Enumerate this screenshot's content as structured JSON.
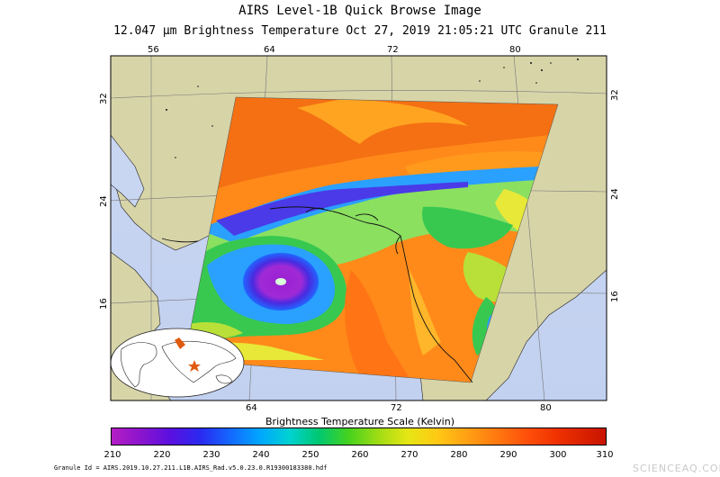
{
  "header": {
    "title": "AIRS Level-1B Quick Browse Image",
    "subtitle": "12.047 μm Brightness Temperature   Oct 27, 2019 21:05:21 UTC   Granule 211"
  },
  "map": {
    "top_ticks": [
      "56",
      "64",
      "72",
      "80"
    ],
    "bottom_ticks": [
      "64",
      "72",
      "80"
    ],
    "left_ticks": [
      "32",
      "24",
      "16"
    ],
    "right_ticks": [
      "32",
      "24",
      "16"
    ],
    "colors": {
      "ocean": "#c9d6f2",
      "land": "#d7d4a8",
      "grid": "#555555"
    }
  },
  "scale": {
    "title": "Brightness Temperature Scale (Kelvin)",
    "labels": [
      "210",
      "220",
      "230",
      "240",
      "250",
      "260",
      "270",
      "280",
      "290",
      "300",
      "310"
    ]
  },
  "footer": {
    "granule_id": "Granule Id = AIRS.2019.10.27.211.L1B.AIRS_Rad.v5.0.23.0.R19300183380.hdf",
    "watermark": "SCIENCEAQ.COM"
  }
}
